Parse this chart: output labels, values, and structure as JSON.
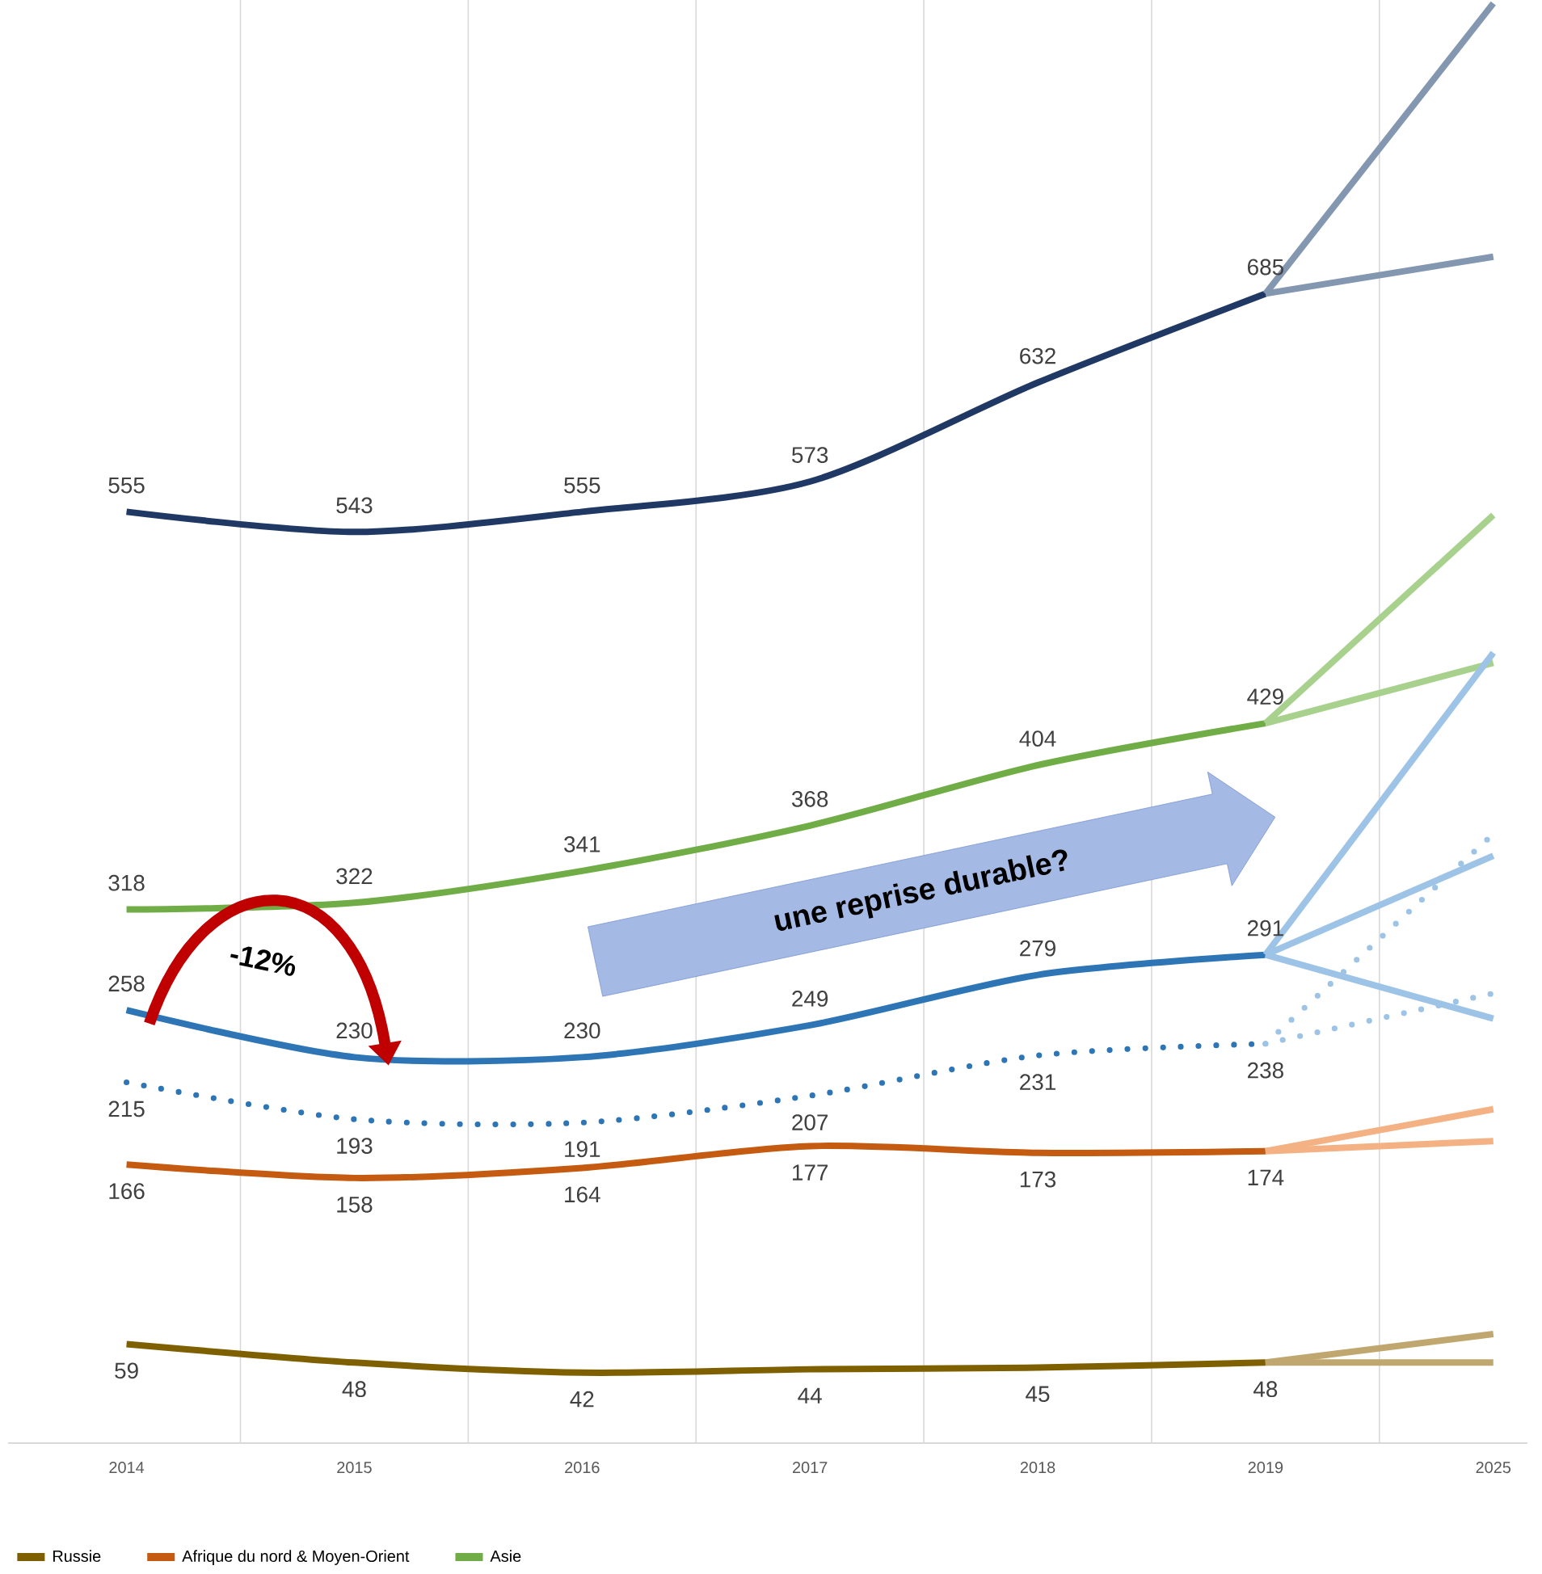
{
  "chart_data": {
    "type": "line",
    "categories": [
      "2014",
      "2015",
      "2016",
      "2017",
      "2018",
      "2019",
      "2025"
    ],
    "series": [
      {
        "name": "Russie",
        "color": "#7f6000",
        "values": [
          59,
          48,
          42,
          44,
          45,
          48,
          null
        ],
        "value_labels": [
          "59",
          "48",
          "42",
          "44",
          "45",
          "48",
          null
        ]
      },
      {
        "name": "Afrique du nord & Moyen-Orient",
        "color": "#c55a11",
        "values": [
          166,
          158,
          164,
          177,
          173,
          174,
          null
        ],
        "value_labels": [
          "166",
          "158",
          "164",
          "177",
          "173",
          "174",
          null
        ]
      },
      {
        "name": "Asie",
        "color": "#70ad47",
        "values": [
          318,
          322,
          341,
          368,
          404,
          429,
          null
        ],
        "value_labels": [
          "318",
          "322",
          "341",
          "368",
          "404",
          "429",
          null
        ]
      },
      {
        "color": "#203864",
        "values": [
          555,
          543,
          555,
          573,
          632,
          685,
          null
        ],
        "value_labels": [
          "555",
          "543",
          "555",
          "573",
          "632",
          "685",
          null
        ]
      },
      {
        "color": "#2e75b6",
        "values": [
          258,
          230,
          230,
          249,
          279,
          291,
          null
        ],
        "value_labels": [
          "258",
          "230",
          "230",
          "249",
          "279",
          "291",
          null
        ]
      },
      {
        "color": "#2e75b6",
        "line_style": "dotted",
        "values": [
          215,
          193,
          191,
          207,
          231,
          238,
          null
        ],
        "value_labels": [
          "215",
          "193",
          "191",
          "207",
          "231",
          "238",
          null
        ]
      },
      {
        "color": "#8497b0",
        "values": [
          null,
          null,
          null,
          null,
          null,
          685,
          858
        ]
      },
      {
        "color": "#8497b0",
        "values": [
          null,
          null,
          null,
          null,
          null,
          685,
          707
        ]
      },
      {
        "color": "#a9d18e",
        "values": [
          null,
          null,
          null,
          null,
          null,
          429,
          553
        ]
      },
      {
        "color": "#a9d18e",
        "values": [
          null,
          null,
          null,
          null,
          null,
          429,
          465
        ]
      },
      {
        "color": "#9dc3e6",
        "values": [
          null,
          null,
          null,
          null,
          null,
          291,
          471
        ]
      },
      {
        "color": "#9dc3e6",
        "values": [
          null,
          null,
          null,
          null,
          null,
          291,
          350
        ]
      },
      {
        "color": "#9dc3e6",
        "values": [
          null,
          null,
          null,
          null,
          null,
          291,
          253
        ]
      },
      {
        "color": "#9dc3e6",
        "line_style": "dotted",
        "values": [
          null,
          null,
          null,
          null,
          null,
          238,
          363
        ]
      },
      {
        "color": "#9dc3e6",
        "line_style": "dotted",
        "values": [
          null,
          null,
          null,
          null,
          null,
          238,
          268
        ]
      },
      {
        "color": "#f4b183",
        "values": [
          null,
          null,
          null,
          null,
          null,
          174,
          199
        ]
      },
      {
        "color": "#f4b183",
        "values": [
          null,
          null,
          null,
          null,
          null,
          174,
          180
        ]
      },
      {
        "color": "#bfa76f",
        "values": [
          null,
          null,
          null,
          null,
          null,
          48,
          65
        ]
      },
      {
        "color": "#bfa76f",
        "values": [
          null,
          null,
          null,
          null,
          null,
          48,
          48
        ]
      }
    ],
    "annotations": [
      "-12%",
      "une reprise durable?"
    ],
    "ylim": [
      0,
      860
    ],
    "grid": "x",
    "legend": "bottom"
  }
}
